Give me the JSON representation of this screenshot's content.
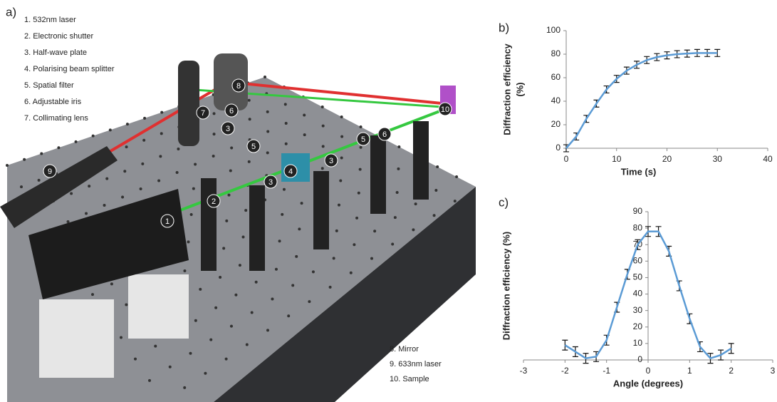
{
  "panels": {
    "a": "a)",
    "b": "b)",
    "c": "c)"
  },
  "legend_top": [
    "1. 532nm laser",
    "2. Electronic shutter",
    "3. Half-wave plate",
    "4. Polarising beam splitter",
    "5. Spatial filter",
    "6. Adjustable iris",
    "7. Collimating lens"
  ],
  "legend_bottom": [
    "8. Mirror",
    "9. 633nm laser",
    "10. Sample"
  ],
  "diagram": {
    "markers": [
      "9",
      "1",
      "2",
      "3",
      "4",
      "3",
      "5",
      "5",
      "3",
      "6",
      "6",
      "7",
      "8",
      "10"
    ]
  },
  "chart_data": [
    {
      "type": "line",
      "xlabel": "Time (s)",
      "ylabel": [
        "Diffraction efficiency",
        "(%)"
      ],
      "x": [
        0,
        2,
        4,
        6,
        8,
        10,
        12,
        14,
        16,
        18,
        20,
        22,
        24,
        26,
        28,
        30
      ],
      "values": [
        0,
        10,
        25,
        38,
        50,
        59,
        66,
        71,
        75,
        77.5,
        79,
        80,
        80.5,
        81,
        81,
        81
      ],
      "error": 3,
      "color": "#5b9bd5",
      "xlim": [
        0,
        40
      ],
      "xticks": [
        0,
        10,
        20,
        30,
        40
      ],
      "ylim": [
        0,
        100
      ],
      "yticks": [
        0,
        20,
        40,
        60,
        80,
        100
      ]
    },
    {
      "type": "line",
      "xlabel": "Angle (degrees)",
      "ylabel": [
        "Diffraction efficiency (%)"
      ],
      "x": [
        -2,
        -1.75,
        -1.5,
        -1.25,
        -1,
        -0.75,
        -0.5,
        -0.25,
        0,
        0.25,
        0.5,
        0.75,
        1,
        1.25,
        1.5,
        1.75,
        2
      ],
      "values": [
        9,
        5,
        1,
        2,
        12,
        32,
        52,
        70,
        78,
        78,
        66,
        45,
        25,
        8,
        1,
        3,
        7
      ],
      "error": 3,
      "color": "#5b9bd5",
      "xlim": [
        -3,
        3
      ],
      "xticks": [
        -3,
        -2,
        -1,
        0,
        1,
        2,
        3
      ],
      "ylim": [
        0,
        90
      ],
      "yticks": [
        0,
        10,
        20,
        30,
        40,
        50,
        60,
        70,
        80,
        90
      ]
    }
  ]
}
